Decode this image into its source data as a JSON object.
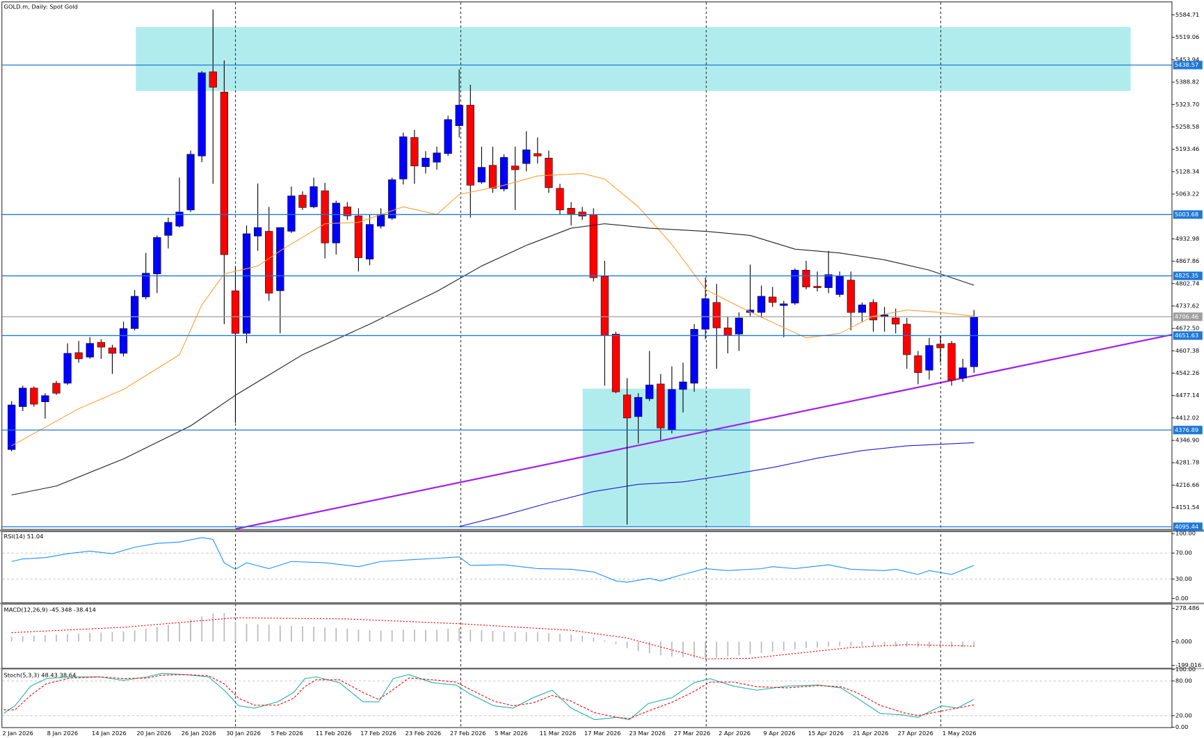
{
  "chart_data": [
    {
      "type": "candlestick",
      "title": "GOLD.m, Daily:  Spot Gold",
      "categories": [
        "2 Jan 2026",
        null,
        null,
        null,
        "8 Jan 2026",
        null,
        null,
        null,
        "14 Jan 2026",
        null,
        null,
        null,
        "20 Jan 2026",
        null,
        null,
        null,
        "26 Jan 2026",
        null,
        null,
        null,
        "30 Jan 2026",
        null,
        null,
        null,
        "5 Feb 2026",
        null,
        null,
        null,
        "11 Feb 2026",
        null,
        null,
        null,
        "17 Feb 2026",
        null,
        null,
        null,
        "23 Feb 2026",
        null,
        null,
        null,
        "27 Feb 2026",
        null,
        null,
        null,
        "5 Mar 2026",
        null,
        null,
        null,
        "11 Mar 2026",
        null,
        null,
        null,
        "17 Mar 2026",
        null,
        null,
        null,
        "23 Mar 2026",
        null,
        null,
        null,
        "27 Mar 2026",
        null,
        null,
        null,
        "2 Apr 2026",
        null,
        null,
        null,
        "9 Apr 2026",
        null,
        null,
        null,
        "15 Apr 2026",
        null,
        null,
        null,
        "21 Apr 2026",
        null,
        null,
        null,
        "27 Apr 2026",
        null,
        null,
        null,
        "1 May 2026",
        null,
        null
      ],
      "open": [
        4320,
        4445,
        4499,
        4459,
        4513,
        4513,
        4602,
        4589,
        4632,
        4616,
        4600,
        4672,
        4764,
        4831,
        4943,
        4970,
        5017,
        5174,
        5419,
        5360,
        4782,
        4658,
        4941,
        4955,
        4782,
        4955,
        5060,
        5026,
        5073,
        4921,
        5026,
        5000,
        4874,
        4970,
        4993,
        5107,
        5228,
        5143,
        5156,
        5181,
        5262,
        5322,
        5098,
        5147,
        5078,
        5145,
        5152,
        5181,
        5168,
        5080,
        5022,
        5011,
        5004,
        4824,
        4656,
        4479,
        4416,
        4468,
        4511,
        4378,
        4495,
        4513,
        4670,
        4748,
        4674,
        4656,
        4719,
        4719,
        4764,
        4739,
        4746,
        4842,
        4795,
        4791,
        4771,
        4813,
        4719,
        4748,
        4708,
        4703,
        4685,
        4593,
        4551,
        4627,
        4629,
        4528,
        4561
      ],
      "high": [
        4461,
        4506,
        4504,
        4484,
        4520,
        4629,
        4636,
        4647,
        4641,
        4625,
        4692,
        4784,
        4892,
        4943,
        4995,
        5111,
        5190,
        5421,
        5600,
        5452,
        4854,
        4972,
        5094,
        5026,
        4966,
        5085,
        5071,
        5111,
        5096,
        5044,
        5040,
        5022,
        5004,
        5022,
        5111,
        5242,
        5250,
        5188,
        5201,
        5291,
        5426,
        5381,
        5201,
        5201,
        5179,
        5201,
        5246,
        5228,
        5190,
        5093,
        5040,
        5026,
        5022,
        4869,
        4663,
        4528,
        4484,
        4607,
        4540,
        4562,
        4573,
        4685,
        4820,
        4802,
        4708,
        4719,
        4858,
        4797,
        4793,
        4753,
        4847,
        4869,
        4838,
        4898,
        4838,
        4838,
        4748,
        4757,
        4735,
        4730,
        4703,
        4607,
        4645,
        4652,
        4636,
        4584,
        4726
      ],
      "low": [
        4315,
        4432,
        4445,
        4410,
        4479,
        4508,
        4573,
        4584,
        4584,
        4540,
        4591,
        4667,
        4757,
        4775,
        4905,
        4966,
        5011,
        5156,
        5093,
        4685,
        4398,
        4629,
        4898,
        4753,
        4658,
        4950,
        5017,
        5022,
        4876,
        4887,
        4988,
        4838,
        4856,
        4963,
        4988,
        5091,
        5093,
        5123,
        5134,
        5174,
        5228,
        4995,
        5093,
        5067,
        5071,
        5017,
        5129,
        5152,
        5067,
        5004,
        4972,
        4988,
        4809,
        4506,
        4484,
        4102,
        4338,
        4461,
        4349,
        4367,
        4428,
        4488,
        4641,
        4555,
        4600,
        4607,
        4708,
        4703,
        4735,
        4647,
        4741,
        4786,
        4780,
        4775,
        4764,
        4667,
        4690,
        4663,
        4663,
        4658,
        4555,
        4510,
        4524,
        4573,
        4506,
        4517,
        4543
      ],
      "close": [
        4450,
        4499,
        4452,
        4477,
        4484,
        4600,
        4584,
        4629,
        4618,
        4600,
        4672,
        4766,
        4833,
        4937,
        4981,
        5011,
        5179,
        5416,
        5374,
        4887,
        4658,
        4948,
        4966,
        4775,
        4966,
        5058,
        5024,
        5085,
        4921,
        5037,
        5000,
        4878,
        4975,
        5002,
        5105,
        5230,
        5145,
        5168,
        5183,
        5280,
        5322,
        5089,
        5141,
        5080,
        5170,
        5134,
        5192,
        5174,
        5082,
        5017,
        5006,
        4999,
        4820,
        4652,
        4488,
        4412,
        4472,
        4508,
        4383,
        4495,
        4517,
        4670,
        4759,
        4674,
        4652,
        4703,
        4726,
        4766,
        4748,
        4744,
        4842,
        4793,
        4791,
        4829,
        4824,
        4719,
        4741,
        4697,
        4712,
        4685,
        4596,
        4544,
        4623,
        4616,
        4522,
        4558,
        4706
      ],
      "up_color": "#0000ff",
      "down_color": "#ff0000",
      "ylim": [
        4089,
        5621
      ],
      "yticks": [
        5584.71,
        5519.06,
        5453.94,
        5388.82,
        {
          "value": 5323.7,
          "label": "5323.70"
        },
        5258.58,
        5193.46,
        5128.34,
        5063.22,
        4932.98,
        4867.86,
        4802.74,
        4737.62,
        {
          "value": 4672.5,
          "label": "4672.50"
        },
        4607.38,
        4542.26,
        4477.14,
        4412.02,
        {
          "value": 4346.9,
          "label": "4346.90"
        },
        4281.78,
        4216.66,
        4151.54
      ],
      "grid": false,
      "series": [
        {
          "color": "#ffa030",
          "x": [
            0,
            6,
            10,
            15,
            17,
            19,
            22,
            24,
            28,
            31,
            35,
            38,
            40,
            44,
            47,
            51,
            53,
            56,
            59,
            62,
            65,
            68,
            71,
            74,
            77,
            80,
            83,
            86
          ],
          "values": [
            4331,
            4439,
            4495,
            4596,
            4741,
            4831,
            4854,
            4898,
            4977,
            4981,
            5026,
            5004,
            5062,
            5089,
            5116,
            5123,
            5107,
            5026,
            4917,
            4786,
            4736,
            4690,
            4645,
            4658,
            4708,
            4726,
            4719,
            4708
          ]
        },
        {
          "color": "#202020",
          "x": [
            0,
            4,
            10,
            16,
            20,
            26,
            32,
            38,
            42,
            46,
            50,
            53,
            57,
            62,
            66,
            70,
            74,
            78,
            82,
            86
          ],
          "values": [
            4188,
            4214,
            4293,
            4389,
            4478,
            4596,
            4685,
            4780,
            4854,
            4914,
            4964,
            4977,
            4964,
            4955,
            4943,
            4903,
            4892,
            4872,
            4842,
            4798
          ]
        },
        {
          "color": "#1a1ad8",
          "x": [
            40,
            44,
            48,
            52,
            56,
            60,
            64,
            68,
            72,
            76,
            80,
            86
          ],
          "values": [
            4096,
            4129,
            4165,
            4198,
            4219,
            4226,
            4246,
            4268,
            4295,
            4317,
            4331,
            4340
          ]
        }
      ],
      "levels": [
        {
          "value": 5438.57,
          "color": "#1e78d7"
        },
        {
          "value": 5003.68,
          "color": "#1e78d7"
        },
        {
          "value": 4825.35,
          "color": "#1e78d7"
        },
        {
          "value": 4706.46,
          "color": "#a0a0a0"
        },
        {
          "value": 4651.63,
          "color": "#1e78d7"
        },
        {
          "value": 4376.89,
          "color": "#1e78d7"
        },
        {
          "value": 4095.44,
          "color": "#1e78d7"
        }
      ]
    },
    {
      "type": "line",
      "label": "RSI(14) 51.04",
      "ylim": [
        0,
        100
      ],
      "grid": true,
      "yticks": [
        {
          "value": 100,
          "label": "100.00"
        },
        {
          "value": 70,
          "label": "70.00"
        },
        {
          "value": 30,
          "label": "30.00"
        },
        {
          "value": 0,
          "label": "0.00"
        }
      ],
      "series": [
        {
          "color": "#1e90ff",
          "x": [
            0,
            1,
            3,
            5,
            7,
            9,
            11,
            13,
            15,
            17,
            18,
            19,
            20,
            21,
            23,
            25,
            28,
            31,
            33,
            36,
            40,
            41,
            44,
            47,
            50,
            52,
            54,
            55,
            57,
            58,
            60,
            62,
            64,
            67,
            68,
            70,
            72,
            73,
            75,
            78,
            79,
            81,
            82,
            84,
            86
          ],
          "values": [
            57,
            61,
            63,
            69,
            73,
            69,
            79,
            85,
            87,
            94,
            91,
            55,
            45,
            55,
            46,
            57,
            55,
            49,
            57,
            60,
            64,
            51,
            52,
            46,
            45,
            41,
            27,
            25,
            31,
            27,
            37,
            46,
            43,
            46,
            49,
            46,
            50,
            52,
            45,
            43,
            45,
            37,
            43,
            37,
            51
          ]
        }
      ]
    },
    {
      "type": "macd",
      "label": "MACD(12,26,9) -45.348 -38.414",
      "ylim": [
        -220,
        304
      ],
      "grid": false,
      "yticks": [
        278.486,
        {
          "value": 0,
          "label": "0.000"
        },
        -199.016
      ],
      "histogram": {
        "color": "#b8b8b8",
        "values": [
          40,
          45,
          50,
          55,
          58,
          62,
          68,
          72,
          75,
          80,
          85,
          95,
          110,
          125,
          140,
          160,
          185,
          210,
          235,
          240,
          160,
          150,
          145,
          140,
          135,
          130,
          128,
          125,
          118,
          115,
          110,
          100,
          95,
          92,
          95,
          100,
          100,
          98,
          100,
          108,
          115,
          100,
          95,
          90,
          85,
          82,
          80,
          78,
          72,
          65,
          58,
          50,
          35,
          10,
          -20,
          -55,
          -80,
          -100,
          -115,
          -125,
          -130,
          -135,
          -140,
          -135,
          -125,
          -115,
          -105,
          -95,
          -85,
          -75,
          -65,
          -55,
          -50,
          -42,
          -38,
          -36,
          -36,
          -38,
          -40,
          -42,
          -45,
          -48,
          -50,
          -48,
          -48,
          -47,
          -45.348
        ]
      },
      "series": [
        {
          "color": "#ff0000",
          "dash": "2,2",
          "x": [
            0,
            10,
            20,
            30,
            40,
            50,
            55,
            60,
            62,
            66,
            70,
            75,
            80,
            86
          ],
          "values": [
            75,
            120,
            200,
            190,
            150,
            95,
            30,
            -95,
            -145,
            -140,
            -100,
            -50,
            -25,
            -38.414
          ]
        }
      ]
    },
    {
      "type": "line",
      "label": "Stoch(5,3,3) 48.43 38.64",
      "ylim": [
        0,
        100
      ],
      "grid": true,
      "yticks": [
        {
          "value": 100,
          "label": "100.00"
        },
        {
          "value": 80,
          "label": "80.00"
        },
        {
          "value": 20,
          "label": "20.00"
        },
        {
          "value": 0,
          "label": "0.00"
        }
      ],
      "series": [
        {
          "color": "#20b2aa",
          "x": [
            -0.7,
            0.3,
            1.7,
            3.1,
            5.2,
            7.9,
            10,
            12.1,
            13.4,
            15.5,
            17.6,
            19,
            20.3,
            21.7,
            23.8,
            25.2,
            26.2,
            27.2,
            29.3,
            31.4,
            32.8,
            34.1,
            35.5,
            37.6,
            39.7,
            41,
            43.1,
            44.8,
            46.6,
            48.3,
            50,
            52.1,
            54.1,
            55.2,
            56.9,
            59,
            61,
            62.4,
            64.5,
            66.6,
            69.3,
            72.1,
            74.1,
            75.5,
            77.6,
            79.7,
            81,
            83.1,
            84.5,
            86
          ],
          "values": [
            24,
            37,
            71,
            84,
            87,
            87,
            81,
            87,
            93,
            91,
            87,
            64,
            37,
            33,
            44,
            60,
            84,
            87,
            77,
            44,
            44,
            84,
            91,
            77,
            73,
            57,
            37,
            33,
            51,
            64,
            33,
            13,
            17,
            13,
            41,
            51,
            77,
            84,
            71,
            64,
            71,
            73,
            68,
            51,
            24,
            21,
            17,
            37,
            33,
            48.43
          ]
        },
        {
          "color": "#ff0000",
          "dash": "3,2",
          "x": [
            -0.7,
            0.3,
            1.7,
            3.1,
            5.2,
            7.9,
            10,
            12.1,
            13.4,
            15.5,
            17.6,
            19,
            20.3,
            21.7,
            23.8,
            25.2,
            26.2,
            27.2,
            29.3,
            31.4,
            32.8,
            34.1,
            35.5,
            37.6,
            39.7,
            41,
            43.1,
            44.8,
            46.6,
            48.3,
            50,
            52.1,
            54.1,
            55.2,
            56.9,
            59,
            61,
            62.4,
            64.5,
            66.6,
            69.3,
            72.1,
            74.1,
            75.5,
            77.6,
            79.7,
            81,
            83.1,
            84.5,
            86
          ],
          "values": [
            30,
            30,
            55,
            75,
            85,
            87,
            84,
            85,
            90,
            91,
            89,
            75,
            50,
            38,
            38,
            50,
            70,
            82,
            82,
            60,
            48,
            65,
            85,
            82,
            78,
            65,
            45,
            37,
            42,
            55,
            45,
            25,
            17,
            15,
            28,
            43,
            62,
            78,
            78,
            70,
            68,
            72,
            70,
            60,
            38,
            25,
            20,
            28,
            33,
            38.64
          ]
        }
      ]
    }
  ]
}
